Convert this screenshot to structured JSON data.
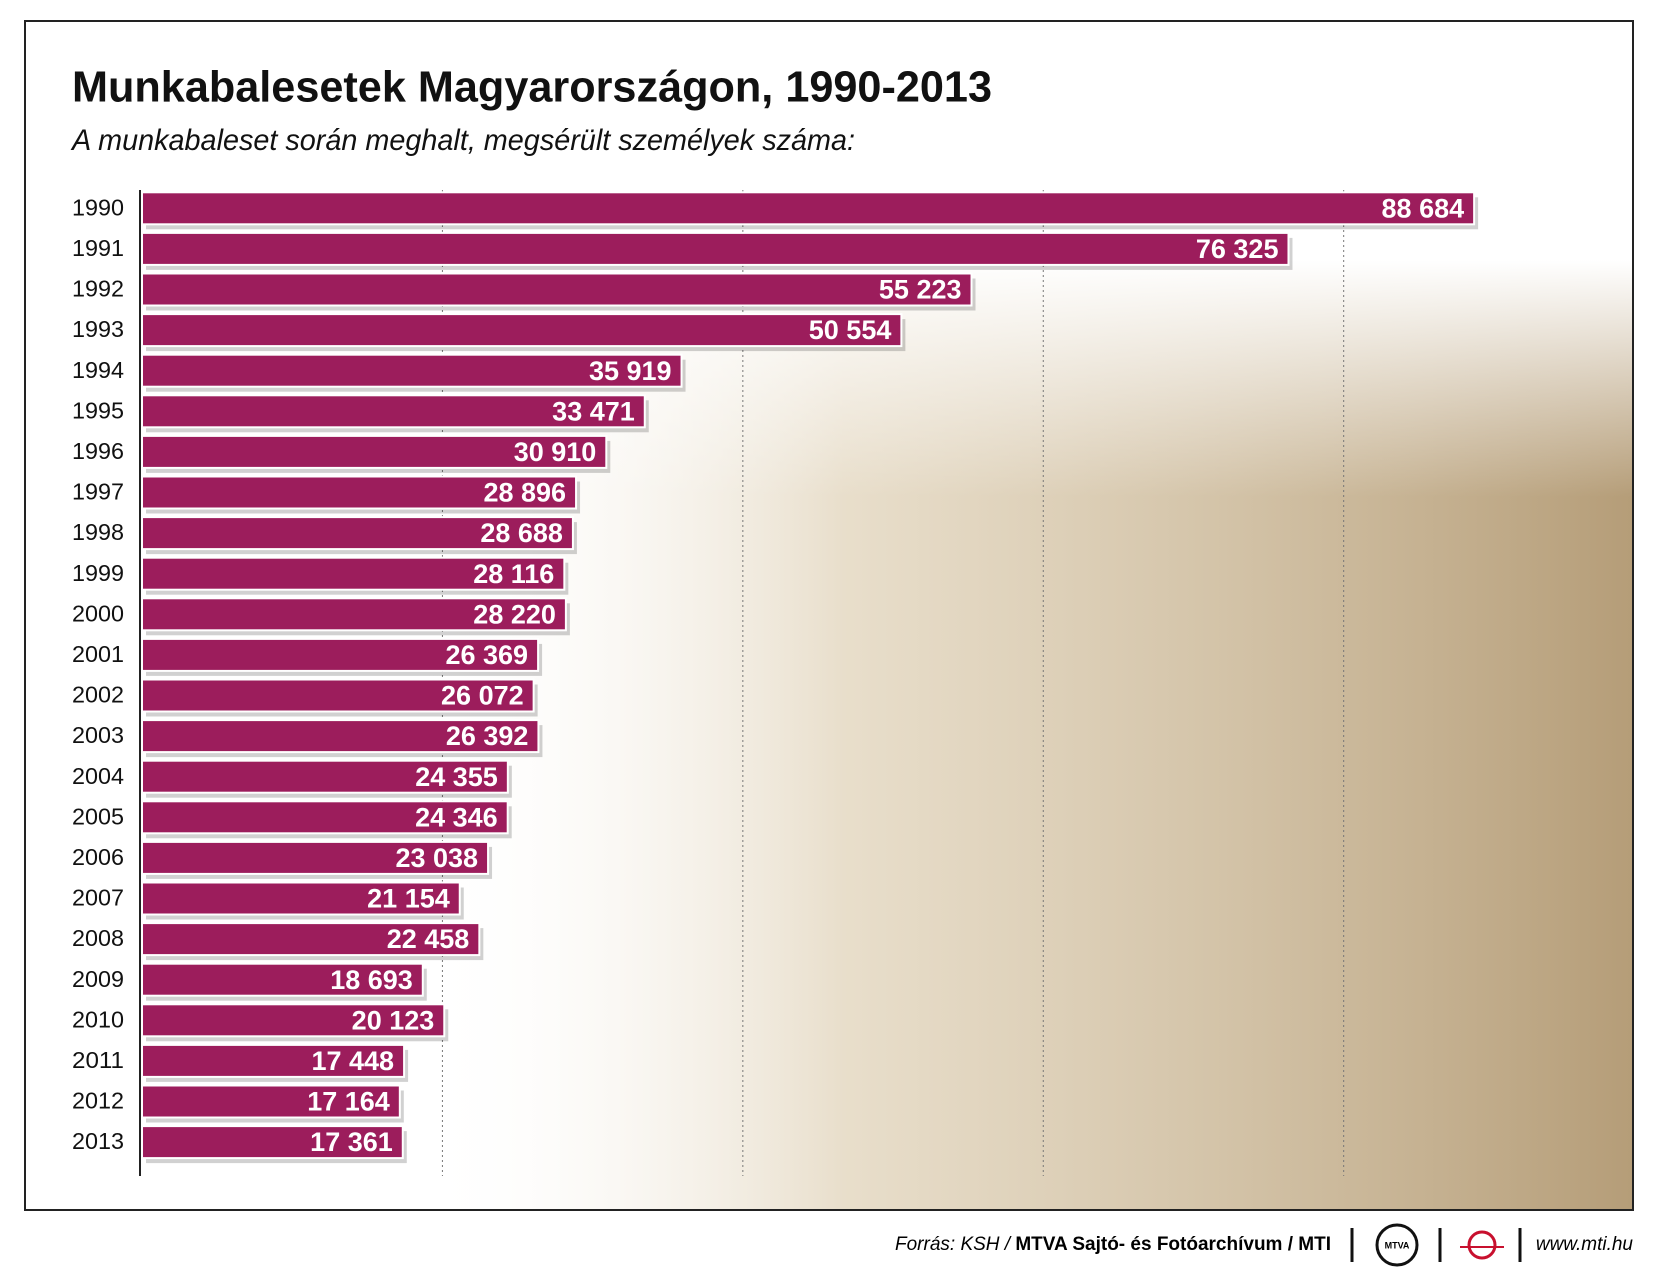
{
  "chart_data": {
    "type": "barh",
    "title": "Munkabalesetek Magyarországon, 1990-2013",
    "subtitle": "A munkabaleset során meghalt, megsérült személyek száma:",
    "categories": [
      "1990",
      "1991",
      "1992",
      "1993",
      "1994",
      "1995",
      "1996",
      "1997",
      "1998",
      "1999",
      "2000",
      "2001",
      "2002",
      "2003",
      "2004",
      "2005",
      "2006",
      "2007",
      "2008",
      "2009",
      "2010",
      "2011",
      "2012",
      "2013"
    ],
    "values": [
      88684,
      76325,
      55223,
      50554,
      35919,
      33471,
      30910,
      28896,
      28688,
      28116,
      28220,
      26369,
      26072,
      26392,
      24355,
      24346,
      23038,
      21154,
      22458,
      18693,
      20123,
      17448,
      17164,
      17361
    ],
    "value_labels": [
      "88 684",
      "76 325",
      "55 223",
      "50 554",
      "35 919",
      "33 471",
      "30 910",
      "28 896",
      "28 688",
      "28 116",
      "28 220",
      "26 369",
      "26 072",
      "26 392",
      "24 355",
      "24 346",
      "23 038",
      "21 154",
      "22 458",
      "18 693",
      "20 123",
      "17 448",
      "17 164",
      "17 361"
    ],
    "color": "#9c1d5c",
    "xlim": [
      0,
      95000
    ],
    "xticks": [
      20000,
      40000,
      60000,
      80000
    ],
    "grid": true,
    "source_prefix": "Forrás: KSH /",
    "source": "MTVA Sajtó- és Fotóarchívum / MTI",
    "logo_text": "MTVA",
    "website": "www.mti.hu"
  }
}
